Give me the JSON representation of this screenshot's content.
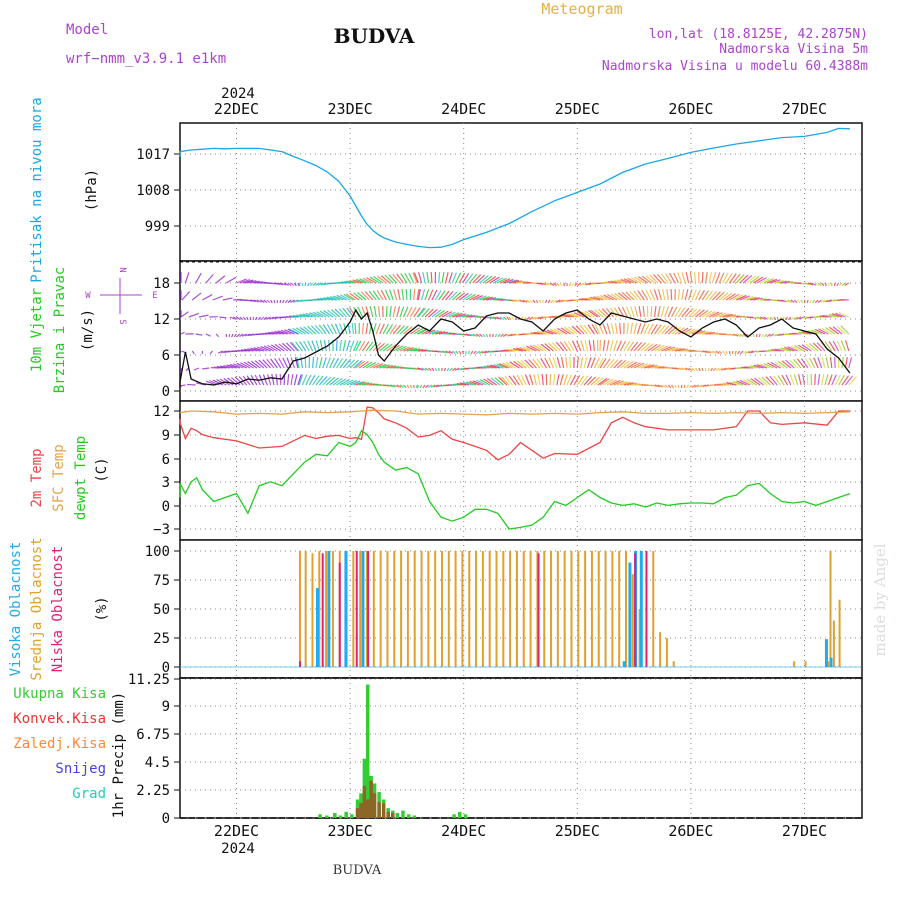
{
  "header": {
    "location": "BUDVA",
    "footer_location": "BUDVA",
    "model_label": "Model",
    "model_name": "wrf−nmm_v3.9.1  e1km",
    "title": "Meteogram",
    "coords": "lon,lat (18.8125E, 42.2875N)",
    "elevation": "Nadmorska Visina 5m",
    "model_elevation": "Nadmorska Visina u modelu 60.4388m",
    "watermark": "made by Angel"
  },
  "colors": {
    "pressure": "#1aa7e8",
    "temp2m": "#ee4444",
    "sfc_temp": "#e5a24a",
    "dewpoint": "#22cc22",
    "cloud_high": "#22aaee",
    "cloud_mid": "#e0a030",
    "cloud_low": "#dd2277",
    "precip_total": "#33cc33",
    "precip_conv": "#ee3333",
    "precip_frz": "#ff8833",
    "snow": "#4444dd",
    "hail": "#22ccbb",
    "title_gold": "#e8b040",
    "purple": "#aa44cc"
  },
  "time_axis": {
    "year": "2024",
    "dates": [
      "22DEC",
      "23DEC",
      "24DEC",
      "25DEC",
      "26DEC",
      "27DEC"
    ]
  },
  "chart_data": [
    {
      "panel": "pressure",
      "type": "line",
      "ylabel": "Pritisak na nivou mora",
      "unit": "(hPa)",
      "y_ticks": [
        "999",
        "1008",
        "1017"
      ],
      "ylim": [
        992,
        1024
      ],
      "xlim": [
        -0.6,
        5.4
      ],
      "series": [
        {
          "x": [
            -0.6,
            -0.5,
            -0.4,
            -0.3,
            -0.2,
            -0.1,
            0,
            0.2,
            0.4,
            0.5,
            0.6,
            0.7,
            0.8,
            0.9,
            1.0,
            1.05,
            1.1,
            1.15,
            1.2,
            1.25,
            1.3,
            1.4,
            1.5,
            1.6,
            1.7,
            1.8,
            1.9,
            2.0,
            2.2,
            2.4,
            2.6,
            2.8,
            3.0,
            3.2,
            3.4,
            3.6,
            3.8,
            4.0,
            4.2,
            4.4,
            4.6,
            4.8,
            5.0,
            5.2,
            5.3,
            5.4
          ],
          "y": [
            1016.3,
            1017.6,
            1018.0,
            1018.2,
            1018.4,
            1018.3,
            1018.4,
            1018.4,
            1017.6,
            1016.4,
            1015.3,
            1014.1,
            1012.5,
            1010.2,
            1006.5,
            1004.0,
            1001.5,
            999.4,
            997.9,
            996.8,
            996.0,
            995.0,
            994.4,
            993.9,
            993.6,
            993.7,
            994.4,
            995.6,
            997.4,
            999.6,
            1002.6,
            1005.3,
            1007.4,
            1009.5,
            1012.4,
            1014.5,
            1015.9,
            1017.4,
            1018.5,
            1019.5,
            1020.3,
            1021.1,
            1021.4,
            1022.4,
            1023.4,
            1023.3
          ]
        }
      ]
    },
    {
      "panel": "wind",
      "type": "line",
      "ylabel_1": "10m Vjetar",
      "ylabel_2": "Brzina i Pravac",
      "unit": "(m/s)",
      "compass": [
        "N",
        "W",
        "E",
        "S"
      ],
      "y_ticks": [
        "0",
        "6",
        "12",
        "18"
      ],
      "ylim": [
        -1,
        21
      ],
      "xlim": [
        -0.6,
        5.4
      ],
      "series": [
        {
          "x": [
            -0.6,
            -0.5,
            -0.45,
            -0.4,
            -0.3,
            -0.2,
            -0.1,
            0,
            0.1,
            0.2,
            0.3,
            0.4,
            0.5,
            0.6,
            0.7,
            0.8,
            0.9,
            1.0,
            1.05,
            1.1,
            1.15,
            1.2,
            1.25,
            1.3,
            1.4,
            1.5,
            1.6,
            1.7,
            1.8,
            1.9,
            2.0,
            2.1,
            2.2,
            2.3,
            2.4,
            2.5,
            2.6,
            2.7,
            2.8,
            2.9,
            3.0,
            3.1,
            3.2,
            3.3,
            3.4,
            3.5,
            3.6,
            3.7,
            3.8,
            3.9,
            4.0,
            4.1,
            4.2,
            4.3,
            4.4,
            4.5,
            4.6,
            4.7,
            4.8,
            4.9,
            5.0,
            5.1,
            5.2,
            5.3,
            5.4
          ],
          "y": [
            0.5,
            1.5,
            6.5,
            2.0,
            1.2,
            1.0,
            1.5,
            1.2,
            2.0,
            1.8,
            2.2,
            2.0,
            5.0,
            5.5,
            6.5,
            7.5,
            9.0,
            11.5,
            13.5,
            12.0,
            13.0,
            10.0,
            6.0,
            5.0,
            7.5,
            9.5,
            11.0,
            10.0,
            12.0,
            11.5,
            10.0,
            10.5,
            12.5,
            13.0,
            13.0,
            12.0,
            11.5,
            10.0,
            12.0,
            13.0,
            13.5,
            12.0,
            11.0,
            13.0,
            12.5,
            12.0,
            11.5,
            12.0,
            11.5,
            10.0,
            9.0,
            10.5,
            11.5,
            12.0,
            11.0,
            9.0,
            10.5,
            11.0,
            12.0,
            10.5,
            10.0,
            9.5,
            7.0,
            5.5,
            3.0
          ]
        }
      ]
    },
    {
      "panel": "temperature",
      "type": "line",
      "ylabel_1": "2m Temp",
      "ylabel_2": "SFC Temp",
      "ylabel_3": "dewpt Temp",
      "unit": "(C)",
      "y_ticks": [
        "−3",
        "0",
        "3",
        "6",
        "9",
        "12"
      ],
      "ylim": [
        -4.5,
        12.7
      ],
      "xlim": [
        -0.6,
        5.4
      ],
      "series": [
        {
          "name": "2m Temp",
          "x": [
            -0.6,
            -0.5,
            -0.45,
            -0.4,
            -0.35,
            -0.3,
            -0.2,
            0,
            0.2,
            0.4,
            0.5,
            0.6,
            0.7,
            0.8,
            0.9,
            1.0,
            1.05,
            1.1,
            1.15,
            1.2,
            1.25,
            1.3,
            1.4,
            1.5,
            1.6,
            1.7,
            1.8,
            1.9,
            2.0,
            2.1,
            2.2,
            2.3,
            2.4,
            2.5,
            2.6,
            2.7,
            2.8,
            3.0,
            3.2,
            3.3,
            3.4,
            3.5,
            3.6,
            3.8,
            4.0,
            4.2,
            4.4,
            4.5,
            4.6,
            4.7,
            4.8,
            5.0,
            5.2,
            5.3,
            5.4
          ],
          "y": [
            11.0,
            10.5,
            8.5,
            9.8,
            9.5,
            9.0,
            8.6,
            8.2,
            7.3,
            7.5,
            8.2,
            8.9,
            8.5,
            8.8,
            8.9,
            8.5,
            8.6,
            8.4,
            12.5,
            12.4,
            11.8,
            11.0,
            10.5,
            9.8,
            8.7,
            8.9,
            9.5,
            8.4,
            8.0,
            7.5,
            7.0,
            5.8,
            6.5,
            8.0,
            7.0,
            6.0,
            6.6,
            6.5,
            8.0,
            10.5,
            11.2,
            10.5,
            10.0,
            9.6,
            9.6,
            9.6,
            10.0,
            12.0,
            12.0,
            10.5,
            10.3,
            10.5,
            10.2,
            12.0,
            12.0
          ]
        },
        {
          "name": "SFC Temp",
          "x": [
            -0.6,
            -0.4,
            -0.2,
            0,
            0.2,
            0.4,
            0.6,
            0.8,
            1.0,
            1.1,
            1.2,
            1.4,
            1.6,
            1.8,
            2.0,
            2.2,
            2.4,
            2.6,
            2.8,
            3.0,
            3.2,
            3.4,
            3.6,
            3.8,
            4.0,
            4.2,
            4.4,
            4.6,
            4.8,
            5.0,
            5.2,
            5.4
          ],
          "y": [
            11.8,
            12.0,
            11.9,
            11.6,
            11.7,
            11.6,
            11.9,
            11.8,
            11.9,
            12.0,
            12.1,
            12.0,
            11.6,
            11.7,
            11.6,
            11.5,
            11.7,
            11.6,
            11.7,
            11.6,
            11.8,
            11.9,
            11.7,
            11.7,
            11.8,
            11.7,
            11.8,
            11.7,
            11.8,
            11.7,
            11.8,
            11.9
          ]
        },
        {
          "name": "dewpt Temp",
          "x": [
            -0.6,
            -0.5,
            -0.45,
            -0.4,
            -0.35,
            -0.3,
            -0.2,
            -0.1,
            0,
            0.1,
            0.2,
            0.3,
            0.4,
            0.5,
            0.6,
            0.7,
            0.8,
            0.9,
            1.0,
            1.05,
            1.1,
            1.15,
            1.2,
            1.25,
            1.3,
            1.4,
            1.5,
            1.6,
            1.7,
            1.8,
            1.9,
            2.0,
            2.1,
            2.2,
            2.3,
            2.4,
            2.5,
            2.6,
            2.7,
            2.8,
            2.9,
            3.0,
            3.1,
            3.2,
            3.3,
            3.4,
            3.5,
            3.6,
            3.7,
            3.8,
            3.9,
            4.0,
            4.1,
            4.2,
            4.3,
            4.4,
            4.5,
            4.6,
            4.7,
            4.8,
            4.9,
            5.0,
            5.1,
            5.2,
            5.3,
            5.4
          ],
          "y": [
            1.0,
            2.8,
            1.5,
            3.0,
            3.5,
            2.0,
            0.5,
            1.0,
            1.5,
            -1.0,
            2.5,
            3.0,
            2.5,
            4.0,
            5.5,
            6.5,
            6.3,
            8.0,
            7.5,
            8.0,
            9.5,
            9.0,
            8.0,
            6.5,
            5.5,
            4.5,
            4.8,
            4.0,
            0.5,
            -1.5,
            -2.0,
            -1.5,
            -0.5,
            -0.5,
            -1.0,
            -3.0,
            -2.8,
            -2.5,
            -1.5,
            0.5,
            0.0,
            1.0,
            2.0,
            1.0,
            0.3,
            0.0,
            0.2,
            -0.2,
            0.3,
            0.0,
            0.2,
            0.3,
            0.3,
            0.2,
            1.0,
            1.3,
            2.5,
            2.8,
            1.5,
            0.5,
            0.3,
            0.5,
            0.0,
            0.5,
            1.0,
            1.5
          ]
        }
      ]
    },
    {
      "panel": "clouds",
      "type": "bar",
      "ylabel_1": "Visoka Oblacnost",
      "ylabel_2": "Srednja Oblacnost",
      "ylabel_3": "Niska Oblacnost",
      "unit": "(%)",
      "y_ticks": [
        "0",
        "25",
        "50",
        "75",
        "100"
      ],
      "ylim": [
        0,
        100
      ],
      "xlim": [
        -0.6,
        5.4
      ],
      "series": [
        {
          "name": "Srednja Oblacnost",
          "x": [
            0.55,
            0.6,
            0.66,
            0.72,
            0.78,
            0.84,
            0.9,
            0.96,
            1.02,
            1.08,
            1.14,
            1.2,
            1.26,
            1.32,
            1.38,
            1.44,
            1.5,
            1.56,
            1.62,
            1.68,
            1.74,
            1.8,
            1.86,
            1.92,
            1.98,
            2.04,
            2.1,
            2.16,
            2.22,
            2.28,
            2.34,
            2.4,
            2.46,
            2.52,
            2.58,
            2.64,
            2.7,
            2.76,
            2.82,
            2.88,
            2.94,
            3.0,
            3.06,
            3.12,
            3.18,
            3.24,
            3.3,
            3.36,
            3.42,
            3.48,
            3.54,
            3.6,
            3.66,
            3.72,
            3.78,
            3.84,
            4.9,
            5.0,
            5.2,
            5.22,
            5.25,
            5.3
          ],
          "y": [
            100,
            100,
            98,
            100,
            100,
            100,
            100,
            100,
            100,
            100,
            100,
            100,
            100,
            100,
            100,
            100,
            100,
            100,
            100,
            100,
            100,
            100,
            100,
            100,
            100,
            100,
            100,
            100,
            100,
            100,
            100,
            100,
            100,
            100,
            100,
            100,
            100,
            100,
            100,
            100,
            100,
            100,
            100,
            100,
            100,
            100,
            100,
            100,
            100,
            80,
            50,
            100,
            100,
            30,
            25,
            5,
            5,
            5,
            5,
            100,
            40,
            58
          ]
        },
        {
          "name": "Visoka Oblacnost",
          "x": [
            0.7,
            0.8,
            0.95,
            1.1,
            3.4,
            3.45,
            3.5,
            3.55,
            5.18,
            5.22
          ],
          "y": [
            68,
            100,
            100,
            100,
            5,
            90,
            100,
            100,
            24,
            8
          ]
        },
        {
          "name": "Niska Oblacnost",
          "x": [
            0.55,
            0.75,
            0.9,
            1.05,
            1.15,
            2.65,
            3.5,
            3.6
          ],
          "y": [
            5,
            98,
            90,
            100,
            100,
            98,
            98,
            100
          ]
        }
      ]
    },
    {
      "panel": "precip",
      "type": "bar",
      "ylabel": "1hr Precip (mm)",
      "legend": [
        "Ukupna  Kisa",
        "Konvek.Kisa",
        "Zaledj.Kisa",
        "Snijeg",
        "Grad"
      ],
      "y_ticks": [
        "0",
        "2.25",
        "4.5",
        "6.75",
        "9",
        "11.25"
      ],
      "ylim": [
        0,
        11.25
      ],
      "xlim": [
        -0.6,
        5.4
      ],
      "series": [
        {
          "name": "Ukupna  Kisa",
          "x": [
            0.72,
            0.78,
            0.85,
            0.9,
            0.95,
            1.0,
            1.05,
            1.08,
            1.11,
            1.14,
            1.17,
            1.2,
            1.24,
            1.28,
            1.32,
            1.36,
            1.4,
            1.45,
            1.5,
            1.55,
            1.9,
            1.95,
            2.0
          ],
          "y": [
            0.3,
            0.2,
            0.4,
            0.2,
            0.5,
            0.3,
            1.5,
            2.0,
            4.8,
            10.8,
            3.4,
            2.8,
            2.1,
            1.5,
            0.8,
            0.6,
            0.4,
            0.6,
            0.3,
            0.2,
            0.3,
            0.5,
            0.3
          ]
        },
        {
          "name": "Konvek.Kisa",
          "x": [
            1.05,
            1.08,
            1.11,
            1.14,
            1.17,
            1.2,
            1.24,
            1.28,
            1.32,
            1.36
          ],
          "y": [
            0.8,
            1.2,
            2.6,
            1.5,
            3.0,
            2.0,
            1.3,
            1.2,
            0.5,
            0.4
          ]
        }
      ]
    }
  ]
}
